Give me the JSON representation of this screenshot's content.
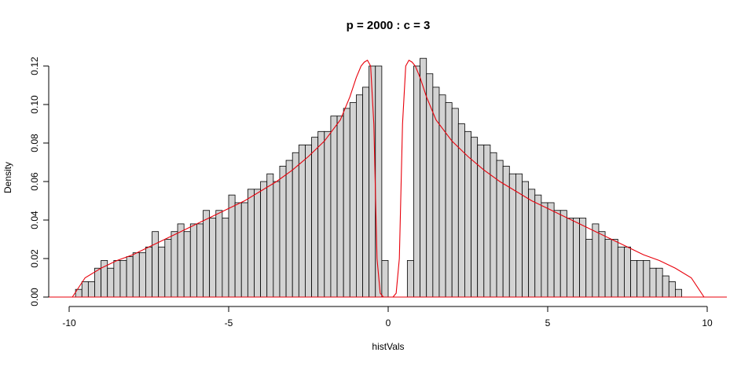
{
  "chart_data": {
    "type": "bar",
    "title": "p = 2000 : c = 3",
    "xlabel": "histVals",
    "ylabel": "Density",
    "xlim": [
      -10,
      10
    ],
    "ylim": [
      0,
      0.12
    ],
    "x_ticks": [
      -10,
      -5,
      0,
      5,
      10
    ],
    "x_tick_labels": [
      "-10",
      "-5",
      "0",
      "5",
      "10"
    ],
    "y_ticks": [
      0,
      0.02,
      0.04,
      0.06,
      0.08,
      0.1,
      0.12
    ],
    "y_tick_labels": [
      "0.00",
      "0.02",
      "0.04",
      "0.06",
      "0.08",
      "0.10",
      "0.12"
    ],
    "grid": false,
    "bin_start": -9.8,
    "bin_width": 0.2,
    "values": [
      0.004,
      0.008,
      0.008,
      0.015,
      0.019,
      0.015,
      0.019,
      0.019,
      0.021,
      0.023,
      0.023,
      0.026,
      0.034,
      0.026,
      0.03,
      0.034,
      0.038,
      0.034,
      0.038,
      0.038,
      0.045,
      0.041,
      0.045,
      0.041,
      0.053,
      0.049,
      0.049,
      0.056,
      0.056,
      0.06,
      0.064,
      0.06,
      0.068,
      0.071,
      0.075,
      0.079,
      0.079,
      0.083,
      0.086,
      0.086,
      0.094,
      0.094,
      0.098,
      0.101,
      0.105,
      0.109,
      0.12,
      0.12,
      0.019,
      0.0,
      0.0,
      0.0,
      0.019,
      0.12,
      0.124,
      0.116,
      0.109,
      0.105,
      0.101,
      0.098,
      0.09,
      0.086,
      0.083,
      0.079,
      0.079,
      0.075,
      0.071,
      0.068,
      0.064,
      0.064,
      0.06,
      0.056,
      0.053,
      0.049,
      0.049,
      0.045,
      0.045,
      0.041,
      0.041,
      0.041,
      0.03,
      0.038,
      0.034,
      0.03,
      0.03,
      0.026,
      0.026,
      0.019,
      0.019,
      0.019,
      0.015,
      0.015,
      0.011,
      0.008,
      0.004
    ],
    "overlay_density": {
      "color": "#e8000b",
      "x": [
        -9.9,
        -9.5,
        -9.0,
        -8.5,
        -8.0,
        -7.5,
        -7.0,
        -6.5,
        -6.0,
        -5.5,
        -5.0,
        -4.5,
        -4.0,
        -3.5,
        -3.0,
        -2.5,
        -2.0,
        -1.5,
        -1.2,
        -1.0,
        -0.85,
        -0.75,
        -0.65,
        -0.55,
        -0.45,
        -0.35,
        -0.25,
        -0.15,
        0.0,
        0.15,
        0.25,
        0.35,
        0.45,
        0.55,
        0.65,
        0.75,
        0.85,
        1.0,
        1.2,
        1.5,
        2.0,
        2.5,
        3.0,
        3.5,
        4.0,
        4.5,
        5.0,
        5.5,
        6.0,
        6.5,
        7.0,
        7.5,
        8.0,
        8.5,
        9.0,
        9.5,
        9.9
      ],
      "y": [
        0.0,
        0.01,
        0.015,
        0.019,
        0.022,
        0.026,
        0.03,
        0.034,
        0.038,
        0.042,
        0.046,
        0.05,
        0.055,
        0.06,
        0.066,
        0.073,
        0.081,
        0.092,
        0.104,
        0.114,
        0.12,
        0.122,
        0.123,
        0.12,
        0.09,
        0.02,
        0.002,
        0.0,
        0.0,
        0.0,
        0.002,
        0.02,
        0.09,
        0.12,
        0.123,
        0.122,
        0.12,
        0.114,
        0.104,
        0.092,
        0.081,
        0.073,
        0.066,
        0.06,
        0.055,
        0.05,
        0.046,
        0.042,
        0.038,
        0.034,
        0.03,
        0.026,
        0.022,
        0.019,
        0.015,
        0.01,
        0.0
      ]
    }
  }
}
